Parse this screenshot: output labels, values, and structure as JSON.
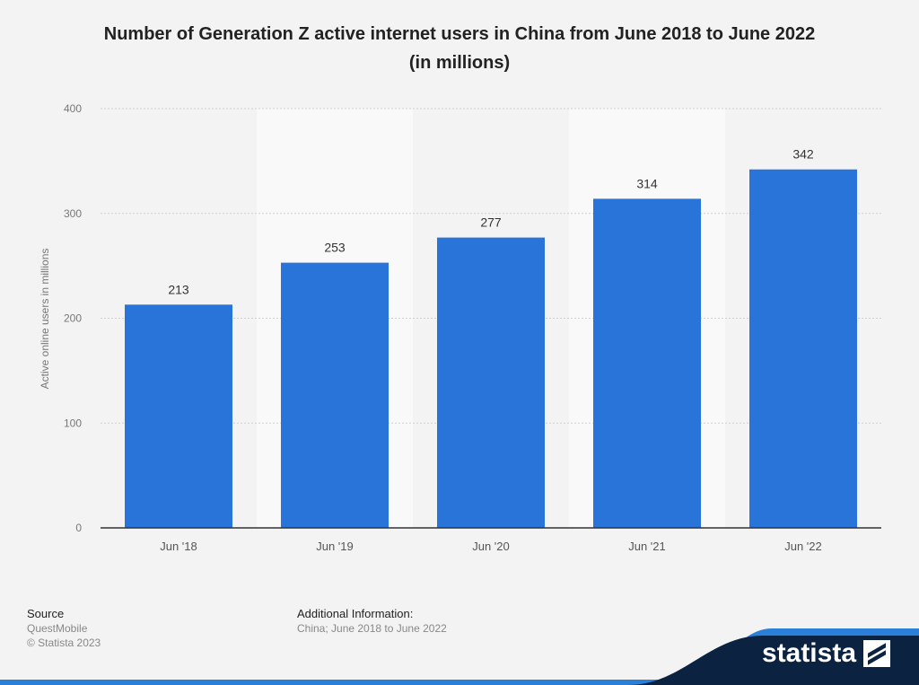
{
  "title": {
    "line1": "Number of Generation Z active internet users in China from June 2018 to June 2022",
    "line2": "(in millions)"
  },
  "chart_data": {
    "type": "bar",
    "title": "Number of Generation Z active internet users in China from June 2018 to June 2022 (in millions)",
    "categories": [
      "Jun '18",
      "Jun '19",
      "Jun '20",
      "Jun '21",
      "Jun '22"
    ],
    "values": [
      213,
      253,
      277,
      314,
      342
    ],
    "ylabel": "Active online users in millions",
    "xlabel": "",
    "ylim": [
      0,
      400
    ],
    "yticks": [
      0,
      100,
      200,
      300,
      400
    ],
    "grid": true,
    "bar_color": "#2874d9"
  },
  "footer": {
    "source_heading": "Source",
    "source_name": "QuestMobile",
    "copyright": "© Statista 2023",
    "info_heading": "Additional Information:",
    "info_text": "China; June 2018 to June 2022"
  },
  "brand": {
    "name": "statista",
    "band_color": "#0b2240",
    "accent_line_color": "#2a7fd8"
  }
}
